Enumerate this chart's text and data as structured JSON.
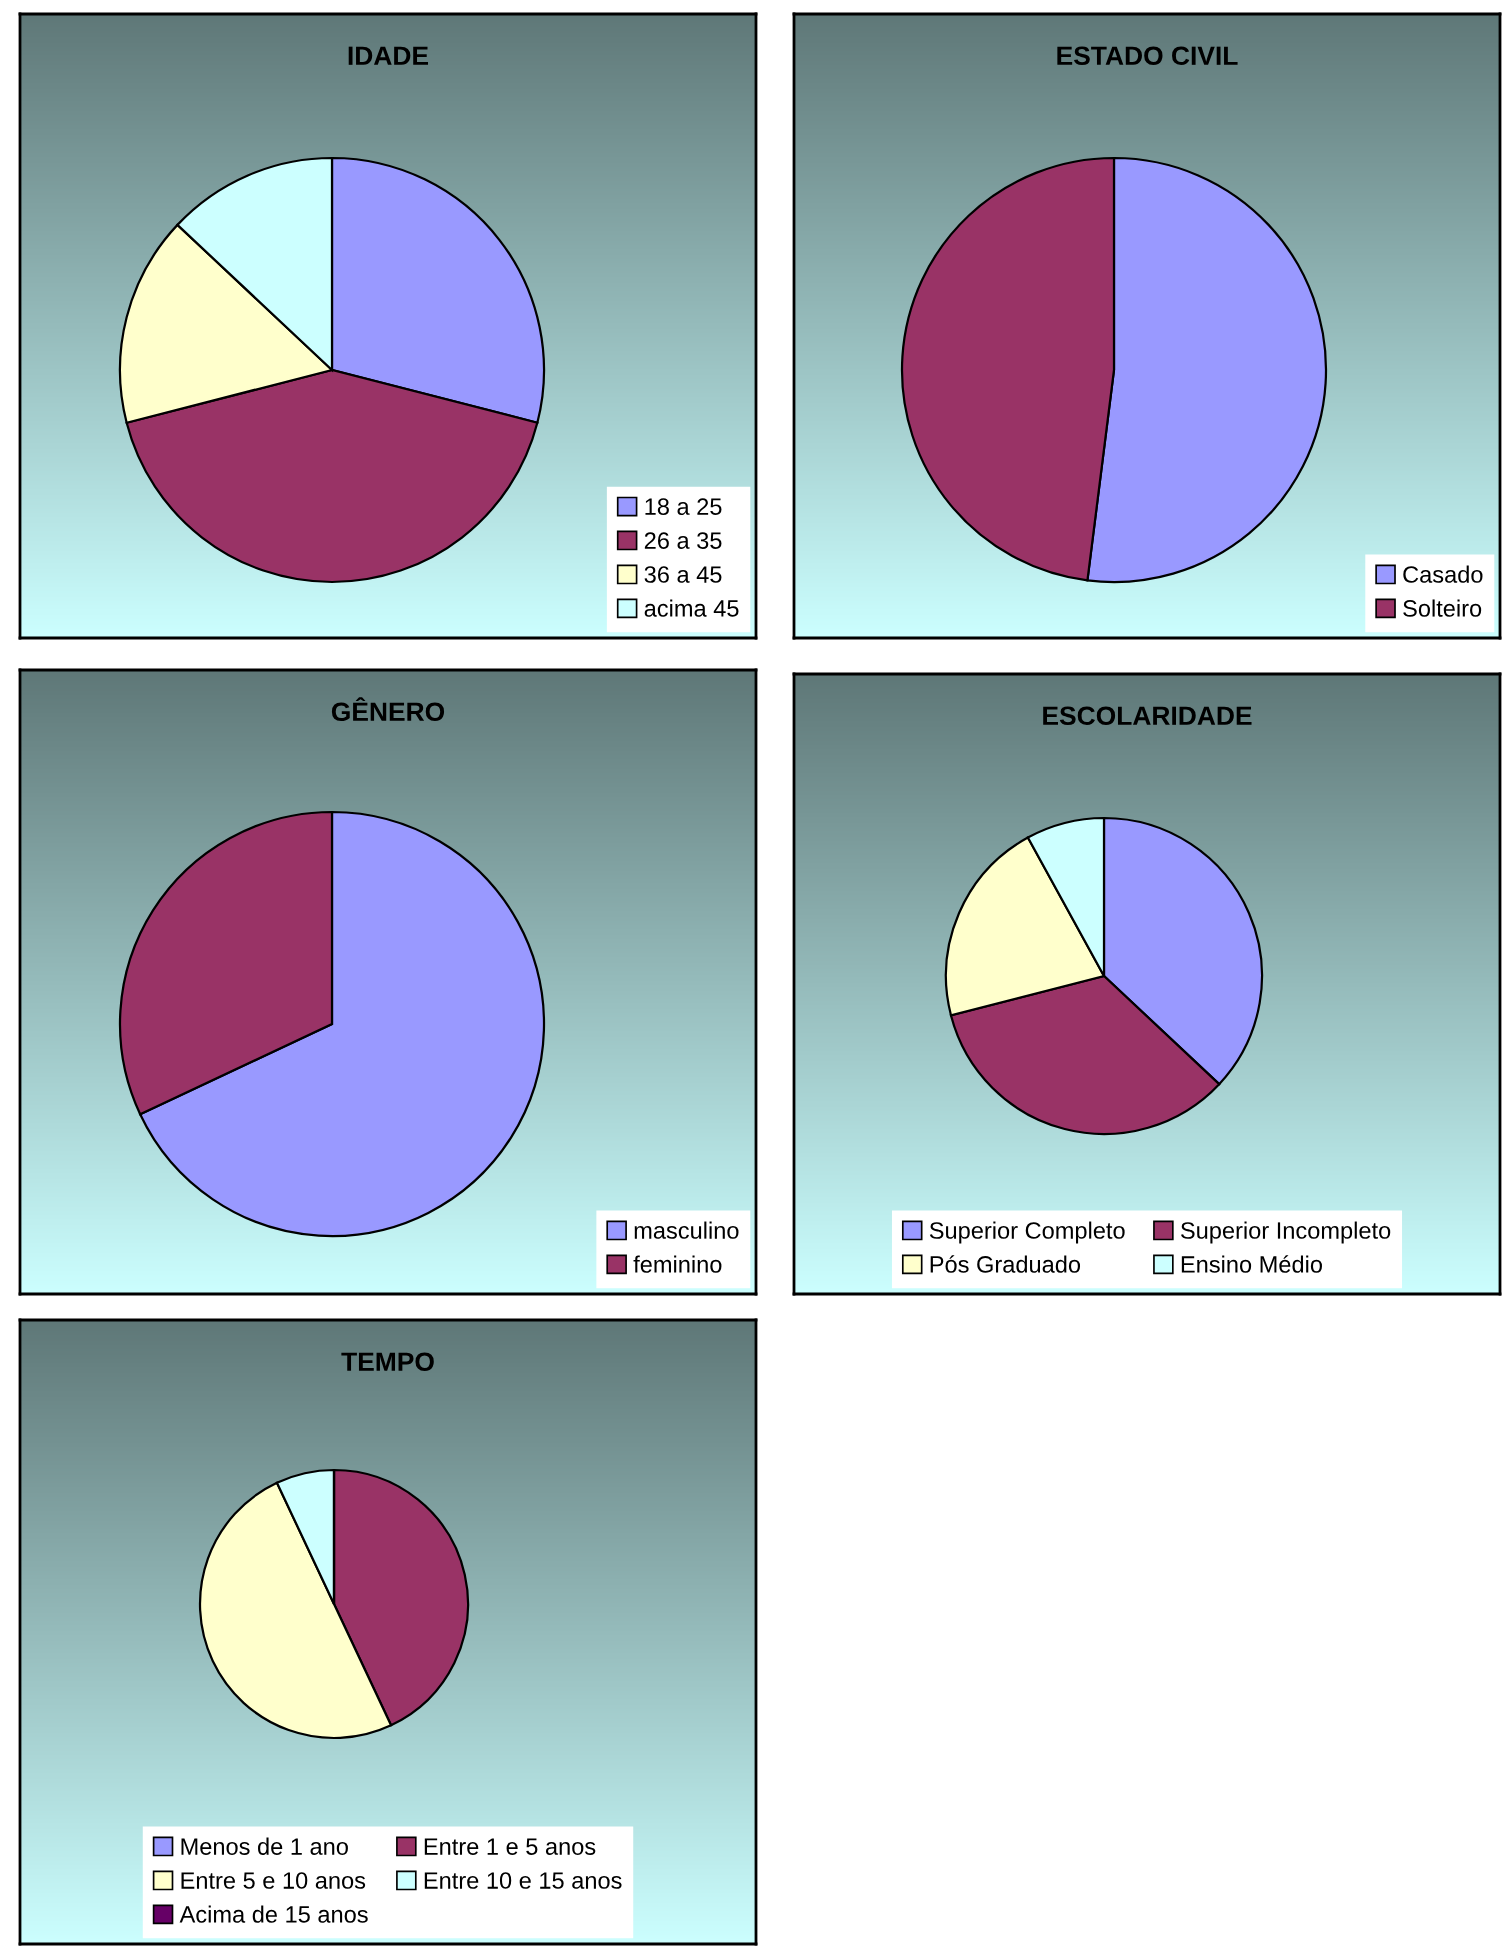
{
  "chart_data": [
    {
      "type": "pie",
      "title": "IDADE",
      "categories": [
        "18 a 25",
        "26 a 35",
        "36 a 45",
        "acima 45"
      ],
      "values": [
        29,
        42,
        16,
        13
      ],
      "colors": [
        "#9999ff",
        "#993366",
        "#ffffcc",
        "#ccffff"
      ],
      "legend": "bottom right"
    },
    {
      "type": "pie",
      "title": "ESTADO CIVIL",
      "categories": [
        "Casado",
        "Solteiro"
      ],
      "values": [
        52,
        48
      ],
      "colors": [
        "#9999ff",
        "#993366"
      ],
      "legend": "bottom right"
    },
    {
      "type": "pie",
      "title": "GÊNERO",
      "categories": [
        "masculino",
        "feminino"
      ],
      "values": [
        68,
        32
      ],
      "colors": [
        "#9999ff",
        "#993366"
      ],
      "legend": "bottom right"
    },
    {
      "type": "pie",
      "title": "ESCOLARIDADE",
      "categories": [
        "Superior Completo",
        "Superior Incompleto",
        "Pós Graduado",
        "Ensino Médio"
      ],
      "values": [
        37,
        34,
        21,
        8
      ],
      "colors": [
        "#9999ff",
        "#993366",
        "#ffffcc",
        "#ccffff"
      ],
      "legend": "bottom"
    },
    {
      "type": "pie",
      "title": "TEMPO",
      "categories": [
        "Menos de 1 ano",
        "Entre 1 e 5 anos",
        "Entre 5 e 10 anos",
        "Entre 10 e 15 anos",
        "Acima de 15 anos"
      ],
      "values": [
        0,
        43,
        50,
        7,
        0
      ],
      "colors": [
        "#9999ff",
        "#993366",
        "#ffffcc",
        "#ccffff",
        "#660066"
      ],
      "legend": "bottom"
    }
  ]
}
